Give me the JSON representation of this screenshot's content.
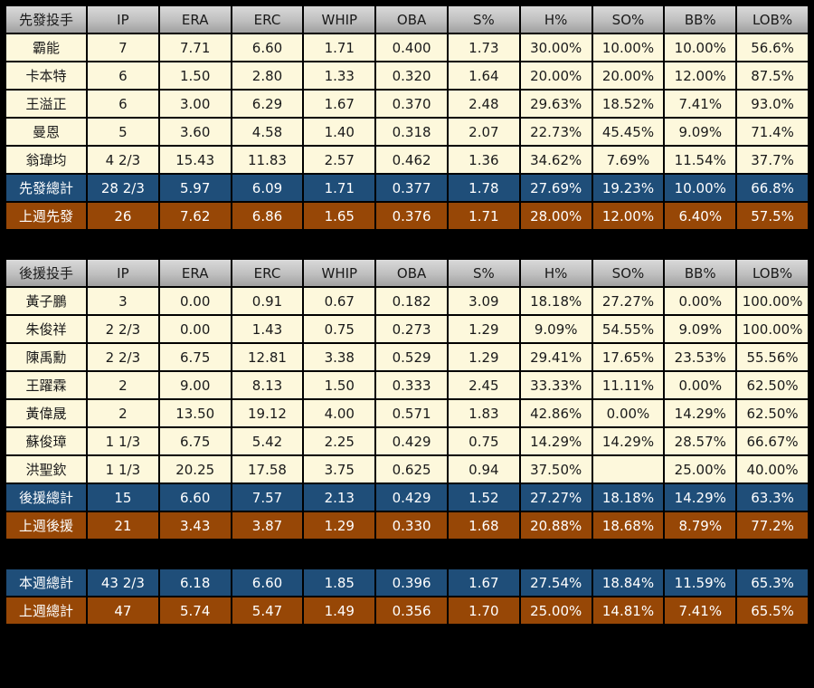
{
  "colors": {
    "page_bg": "#000000",
    "header_top": "#d9d9d9",
    "header_bottom": "#a0a0a0",
    "row_bg": "#fdf8dc",
    "blue_bg": "#1f4e79",
    "brown_bg": "#974706",
    "border": "#000000",
    "text_dark": "#1a1a1a",
    "text_light": "#ffffff"
  },
  "chart_data": [
    {
      "type": "table",
      "title": "先發投手",
      "show_header": true,
      "columns": [
        "IP",
        "ERA",
        "ERC",
        "WHIP",
        "OBA",
        "S%",
        "H%",
        "SO%",
        "BB%",
        "LOB%"
      ],
      "rows": [
        {
          "name": "霸能",
          "type": "player",
          "values": [
            "7",
            "7.71",
            "6.60",
            "1.71",
            "0.400",
            "1.73",
            "30.00%",
            "10.00%",
            "10.00%",
            "56.6%"
          ]
        },
        {
          "name": "卡本特",
          "type": "player",
          "values": [
            "6",
            "1.50",
            "2.80",
            "1.33",
            "0.320",
            "1.64",
            "20.00%",
            "20.00%",
            "12.00%",
            "87.5%"
          ]
        },
        {
          "name": "王溢正",
          "type": "player",
          "values": [
            "6",
            "3.00",
            "6.29",
            "1.67",
            "0.370",
            "2.48",
            "29.63%",
            "18.52%",
            "7.41%",
            "93.0%"
          ]
        },
        {
          "name": "曼恩",
          "type": "player",
          "values": [
            "5",
            "3.60",
            "4.58",
            "1.40",
            "0.318",
            "2.07",
            "22.73%",
            "45.45%",
            "9.09%",
            "71.4%"
          ]
        },
        {
          "name": "翁瑋均",
          "type": "player",
          "values": [
            "4 2/3",
            "15.43",
            "11.83",
            "2.57",
            "0.462",
            "1.36",
            "34.62%",
            "7.69%",
            "11.54%",
            "37.7%"
          ]
        },
        {
          "name": "先發總計",
          "type": "total-blue",
          "values": [
            "28 2/3",
            "5.97",
            "6.09",
            "1.71",
            "0.377",
            "1.78",
            "27.69%",
            "19.23%",
            "10.00%",
            "66.8%"
          ]
        },
        {
          "name": "上週先發",
          "type": "total-brown",
          "values": [
            "26",
            "7.62",
            "6.86",
            "1.65",
            "0.376",
            "1.71",
            "28.00%",
            "12.00%",
            "6.40%",
            "57.5%"
          ]
        }
      ]
    },
    {
      "type": "table",
      "title": "後援投手",
      "show_header": true,
      "columns": [
        "IP",
        "ERA",
        "ERC",
        "WHIP",
        "OBA",
        "S%",
        "H%",
        "SO%",
        "BB%",
        "LOB%"
      ],
      "rows": [
        {
          "name": "黃子鵬",
          "type": "player",
          "values": [
            "3",
            "0.00",
            "0.91",
            "0.67",
            "0.182",
            "3.09",
            "18.18%",
            "27.27%",
            "0.00%",
            "100.00%"
          ]
        },
        {
          "name": "朱俊祥",
          "type": "player",
          "values": [
            "2 2/3",
            "0.00",
            "1.43",
            "0.75",
            "0.273",
            "1.29",
            "9.09%",
            "54.55%",
            "9.09%",
            "100.00%"
          ]
        },
        {
          "name": "陳禹勳",
          "type": "player",
          "values": [
            "2 2/3",
            "6.75",
            "12.81",
            "3.38",
            "0.529",
            "1.29",
            "29.41%",
            "17.65%",
            "23.53%",
            "55.56%"
          ]
        },
        {
          "name": "王躍霖",
          "type": "player",
          "values": [
            "2",
            "9.00",
            "8.13",
            "1.50",
            "0.333",
            "2.45",
            "33.33%",
            "11.11%",
            "0.00%",
            "62.50%"
          ]
        },
        {
          "name": "黃偉晟",
          "type": "player",
          "values": [
            "2",
            "13.50",
            "19.12",
            "4.00",
            "0.571",
            "1.83",
            "42.86%",
            "0.00%",
            "14.29%",
            "62.50%"
          ]
        },
        {
          "name": "蘇俊璋",
          "type": "player",
          "values": [
            "1 1/3",
            "6.75",
            "5.42",
            "2.25",
            "0.429",
            "0.75",
            "14.29%",
            "14.29%",
            "28.57%",
            "66.67%"
          ]
        },
        {
          "name": "洪聖欽",
          "type": "player",
          "values": [
            "1 1/3",
            "20.25",
            "17.58",
            "3.75",
            "0.625",
            "0.94",
            "37.50%",
            "",
            "25.00%",
            "40.00%"
          ]
        },
        {
          "name": "後援總計",
          "type": "total-blue",
          "values": [
            "15",
            "6.60",
            "7.57",
            "2.13",
            "0.429",
            "1.52",
            "27.27%",
            "18.18%",
            "14.29%",
            "63.3%"
          ]
        },
        {
          "name": "上週後援",
          "type": "total-brown",
          "values": [
            "21",
            "3.43",
            "3.87",
            "1.29",
            "0.330",
            "1.68",
            "20.88%",
            "18.68%",
            "8.79%",
            "77.2%"
          ]
        }
      ]
    },
    {
      "type": "table",
      "title": "",
      "show_header": false,
      "columns": [
        "IP",
        "ERA",
        "ERC",
        "WHIP",
        "OBA",
        "S%",
        "H%",
        "SO%",
        "BB%",
        "LOB%"
      ],
      "rows": [
        {
          "name": "本週總計",
          "type": "total-blue",
          "values": [
            "43 2/3",
            "6.18",
            "6.60",
            "1.85",
            "0.396",
            "1.67",
            "27.54%",
            "18.84%",
            "11.59%",
            "65.3%"
          ]
        },
        {
          "name": "上週總計",
          "type": "total-brown",
          "values": [
            "47",
            "5.74",
            "5.47",
            "1.49",
            "0.356",
            "1.70",
            "25.00%",
            "14.81%",
            "7.41%",
            "65.5%"
          ]
        }
      ]
    }
  ]
}
